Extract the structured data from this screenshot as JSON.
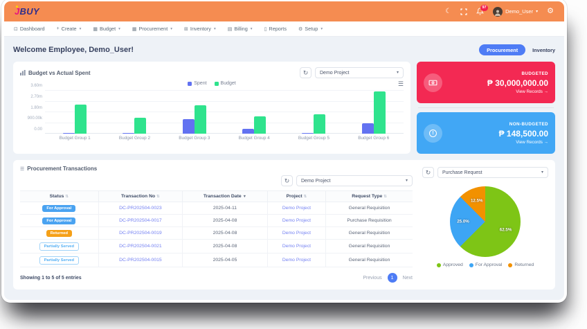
{
  "brand": {
    "letter": "J",
    "rest": "BUY"
  },
  "topbar": {
    "notification_count": "97",
    "user_name": "Demo_User"
  },
  "nav": {
    "items": [
      {
        "name": "dashboard",
        "label": "Dashboard",
        "glyph": "⊡",
        "caret": false
      },
      {
        "name": "create",
        "label": "Create",
        "glyph": "+",
        "caret": true
      },
      {
        "name": "budget",
        "label": "Budget",
        "glyph": "▦",
        "caret": true
      },
      {
        "name": "procurement",
        "label": "Procurement",
        "glyph": "▦",
        "caret": true
      },
      {
        "name": "inventory",
        "label": "Inventory",
        "glyph": "⊞",
        "caret": true
      },
      {
        "name": "billing",
        "label": "Billing",
        "glyph": "▤",
        "caret": true
      },
      {
        "name": "reports",
        "label": "Reports",
        "glyph": "▯",
        "caret": false
      },
      {
        "name": "setup",
        "label": "Setup",
        "glyph": "⚙",
        "caret": true
      }
    ]
  },
  "welcome": {
    "title": "Welcome Employee, Demo_User!",
    "procurement_tab": "Procurement",
    "inventory_tab": "Inventory"
  },
  "budget_card": {
    "title": "Budget vs Actual Spent",
    "project_select": "Demo Project"
  },
  "summary_cards": [
    {
      "label": "BUDGETED",
      "amount": "₱ 30,000,000.00",
      "link": "View Records →",
      "color": "#F32953",
      "icon": "cash-icon"
    },
    {
      "label": "NON-BUDGETED",
      "amount": "₱ 148,500.00",
      "link": "View Records →",
      "color": "#41A7F5",
      "icon": "alert-icon"
    }
  ],
  "transactions": {
    "title": "Procurement Transactions",
    "project_select": "Demo Project",
    "columns": [
      "Status",
      "Transaction No",
      "Transaction Date",
      "Project",
      "Request Type"
    ],
    "sorted_column_index": 2,
    "rows": [
      {
        "status": "For Approval",
        "status_style": "b-blue",
        "transaction_no": "DC-PR202504-0023",
        "date": "2025-04-11",
        "project": "Demo Project",
        "request_type": "General Requisition"
      },
      {
        "status": "For Approval",
        "status_style": "b-blue",
        "transaction_no": "DC-PR202504-0017",
        "date": "2025-04-08",
        "project": "Demo Project",
        "request_type": "Purchase Requisition"
      },
      {
        "status": "Returned",
        "status_style": "b-orange",
        "transaction_no": "DC-PR202504-0019",
        "date": "2025-04-08",
        "project": "Demo Project",
        "request_type": "General Requisition"
      },
      {
        "status": "Partially Served",
        "status_style": "b-outline",
        "transaction_no": "DC-PR202504-0021",
        "date": "2025-04-08",
        "project": "Demo Project",
        "request_type": "General Requisition"
      },
      {
        "status": "Partially Served",
        "status_style": "b-outline",
        "transaction_no": "DC-PR202504-0015",
        "date": "2025-04-05",
        "project": "Demo Project",
        "request_type": "General Requisition"
      }
    ],
    "footer_text": "Showing 1 to 5 of 5 entries",
    "pagination": {
      "previous": "Previous",
      "page": "1",
      "next": "Next"
    }
  },
  "pie_panel": {
    "type_select": "Purchase Request"
  },
  "chart_data": [
    {
      "type": "bar",
      "title": "Budget vs Actual Spent",
      "categories": [
        "Budget Group 1",
        "Budget Group 2",
        "Budget Group 3",
        "Budget Group 4",
        "Budget Group 5",
        "Budget Group 6"
      ],
      "series": [
        {
          "name": "Spent",
          "color": "#6272F1",
          "values": [
            0,
            60000,
            1200000,
            430000,
            0,
            890000
          ]
        },
        {
          "name": "Budget",
          "color": "#2FE38D",
          "values": [
            2450000,
            1350000,
            2400000,
            1450000,
            1600000,
            3550000
          ]
        }
      ],
      "ymax": 3600000,
      "yticks": [
        {
          "value": 3600000,
          "label": "3.60m"
        },
        {
          "value": 2700000,
          "label": "2.70m"
        },
        {
          "value": 1800000,
          "label": "1.80m"
        },
        {
          "value": 900000,
          "label": "900.00k"
        },
        {
          "value": 0,
          "label": "0.00"
        }
      ],
      "legend_position": "top",
      "grid": true
    },
    {
      "type": "pie",
      "slices": [
        {
          "label": "Approved",
          "value": 62.5,
          "display": "62.5%",
          "color": "#7EC516"
        },
        {
          "label": "For Approval",
          "value": 25.0,
          "display": "25.0%",
          "color": "#3DA5F4"
        },
        {
          "label": "Returned",
          "value": 12.5,
          "display": "12.5%",
          "color": "#F29100"
        }
      ],
      "legend_position": "bottom"
    }
  ]
}
